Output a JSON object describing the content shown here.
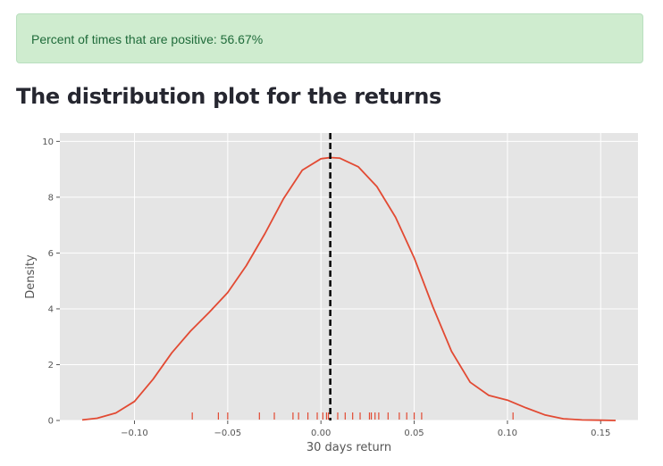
{
  "alert": {
    "text": "Percent of times that are positive: 56.67%"
  },
  "heading": "The distribution plot for the returns",
  "colors": {
    "kde": "#e24a33",
    "rug": "#e24a33",
    "plot_bg": "#e5e5e5",
    "vline": "#000000"
  },
  "chart_data": {
    "type": "line",
    "title": "",
    "xlabel": "30 days return",
    "ylabel": "Density",
    "xlim": [
      -0.14,
      0.17
    ],
    "ylim": [
      0,
      10.3
    ],
    "xticks": [
      -0.1,
      -0.05,
      0.0,
      0.05,
      0.1,
      0.15
    ],
    "xtick_labels": [
      "−0.10",
      "−0.05",
      "0.00",
      "0.05",
      "0.10",
      "0.15"
    ],
    "yticks": [
      0,
      2,
      4,
      6,
      8,
      10
    ],
    "ytick_labels": [
      "0",
      "2",
      "4",
      "6",
      "8",
      "10"
    ],
    "grid": true,
    "series": [
      {
        "kind": "kde",
        "x": [
          -0.128,
          -0.12,
          -0.11,
          -0.1,
          -0.09,
          -0.08,
          -0.07,
          -0.06,
          -0.05,
          -0.04,
          -0.03,
          -0.02,
          -0.01,
          0.0,
          0.005,
          0.01,
          0.02,
          0.03,
          0.04,
          0.05,
          0.06,
          0.07,
          0.08,
          0.09,
          0.1,
          0.11,
          0.12,
          0.13,
          0.14,
          0.15,
          0.158
        ],
        "y": [
          0.02,
          0.08,
          0.27,
          0.68,
          1.48,
          2.42,
          3.2,
          3.87,
          4.58,
          5.55,
          6.7,
          7.96,
          8.97,
          9.38,
          9.42,
          9.4,
          9.09,
          8.38,
          7.28,
          5.83,
          4.08,
          2.48,
          1.37,
          0.9,
          0.73,
          0.45,
          0.2,
          0.06,
          0.02,
          0.01,
          0.0
        ]
      }
    ],
    "rug": [
      -0.069,
      -0.055,
      -0.05,
      -0.033,
      -0.025,
      -0.015,
      -0.012,
      -0.007,
      -0.002,
      0.001,
      0.003,
      0.004,
      0.009,
      0.013,
      0.017,
      0.021,
      0.026,
      0.027,
      0.029,
      0.031,
      0.036,
      0.042,
      0.046,
      0.05,
      0.054,
      0.103
    ],
    "vline": 0.005
  }
}
